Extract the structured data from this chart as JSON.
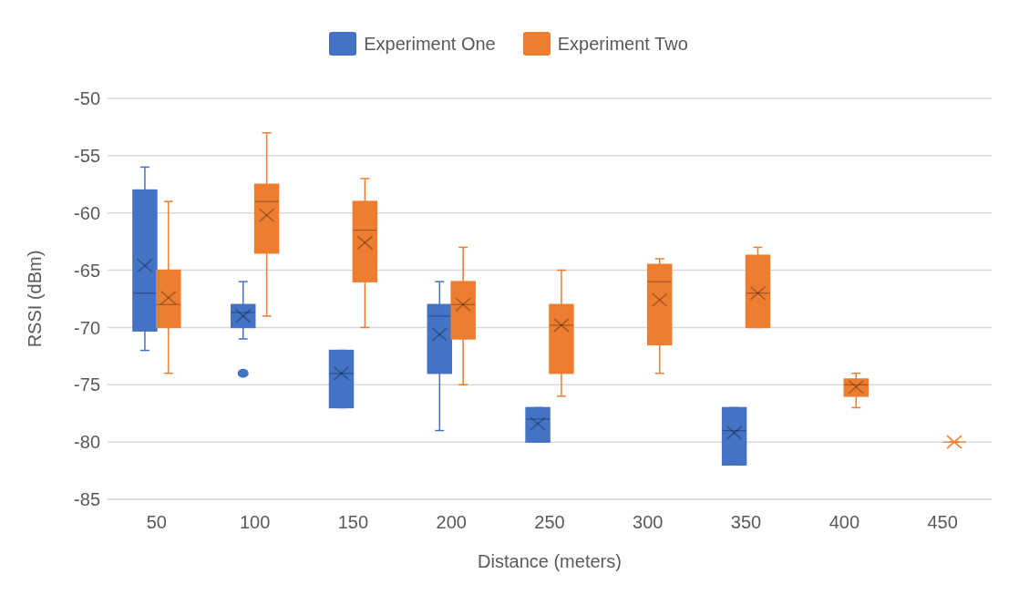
{
  "chart_data": {
    "type": "box",
    "xlabel": "Distance (meters)",
    "ylabel": "RSSI (dBm)",
    "categories": [
      "50",
      "100",
      "150",
      "200",
      "250",
      "300",
      "350",
      "400",
      "450"
    ],
    "ylim": [
      -85,
      -50
    ],
    "yticks": [
      -85,
      -80,
      -75,
      -70,
      -65,
      -60,
      -55,
      -50
    ],
    "grid": "y",
    "legend": "top",
    "series": [
      {
        "name": "Experiment One",
        "color": "#4472c4",
        "boxes": [
          {
            "low": -72,
            "q1": -70.3,
            "median": -67,
            "q3": -58,
            "high": -56,
            "mean": -64.6
          },
          {
            "low": -71,
            "q1": -70,
            "median": -68.7,
            "q3": -68,
            "high": -66,
            "mean": -69,
            "outliers": [
              -74
            ]
          },
          {
            "low": -77,
            "q1": -77,
            "median": -74,
            "q3": -72,
            "high": -72,
            "mean": -74
          },
          {
            "low": -79,
            "q1": -74,
            "median": -69,
            "q3": -68,
            "high": -66,
            "mean": -70.6
          },
          {
            "low": -80,
            "q1": -80,
            "median": -78,
            "q3": -77,
            "high": -77,
            "mean": -78.4
          },
          null,
          {
            "low": -82,
            "q1": -82,
            "median": -79,
            "q3": -77,
            "high": -77,
            "mean": -79.2
          },
          null,
          null
        ]
      },
      {
        "name": "Experiment Two",
        "color": "#ed7d31",
        "boxes": [
          {
            "low": -74,
            "q1": -70,
            "median": -68,
            "q3": -65,
            "high": -59,
            "mean": -67.4
          },
          {
            "low": -69,
            "q1": -63.5,
            "median": -59,
            "q3": -57.5,
            "high": -53,
            "mean": -60.2
          },
          {
            "low": -70,
            "q1": -66,
            "median": -61.5,
            "q3": -59,
            "high": -57,
            "mean": -62.6
          },
          {
            "low": -75,
            "q1": -71,
            "median": -68,
            "q3": -66,
            "high": -63,
            "mean": -68
          },
          {
            "low": -76,
            "q1": -74,
            "median": -69.8,
            "q3": -68,
            "high": -65,
            "mean": -69.8
          },
          {
            "low": -74,
            "q1": -71.5,
            "median": -66,
            "q3": -64.5,
            "high": -64,
            "mean": -67.6
          },
          {
            "low": -70,
            "q1": -70,
            "median": -67,
            "q3": -63.7,
            "high": -63,
            "mean": -67
          },
          {
            "low": -77,
            "q1": -76,
            "median": -75,
            "q3": -74.5,
            "high": -74,
            "mean": -75.2
          },
          {
            "low": -80,
            "q1": -80,
            "median": -80,
            "q3": -80,
            "high": -80,
            "mean": -80
          }
        ]
      }
    ]
  }
}
